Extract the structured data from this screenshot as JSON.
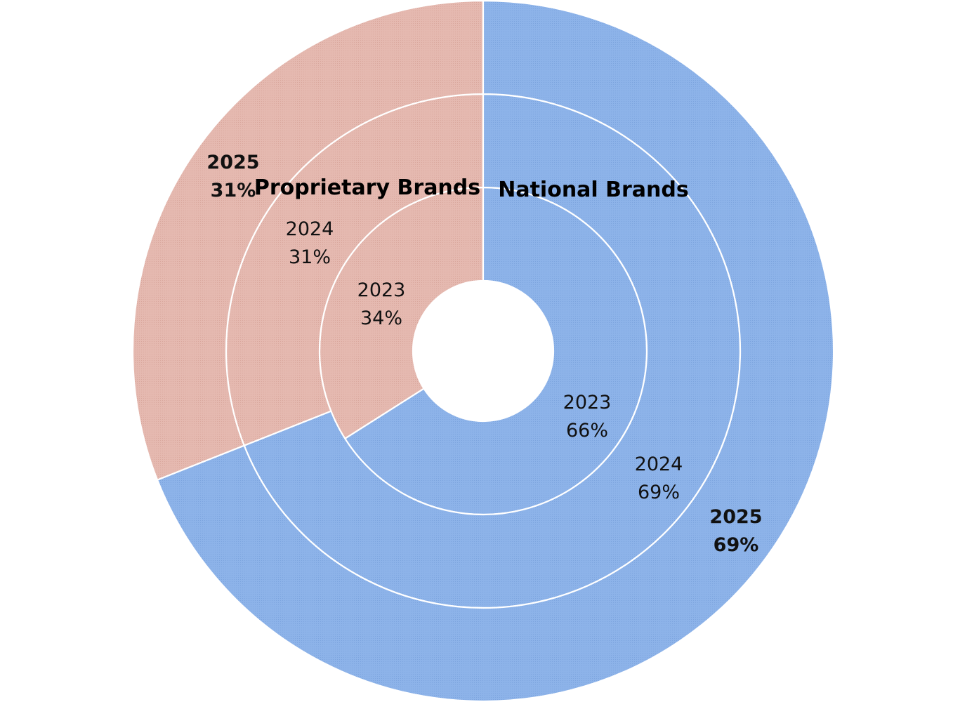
{
  "chart_data": {
    "type": "pie",
    "subtype": "multi-ring donut",
    "categories": [
      "Proprietary Brands",
      "National Brands"
    ],
    "colors": {
      "Proprietary Brands": "#E5B9B0",
      "National Brands": "#8DB3E9"
    },
    "series": [
      {
        "name": "2023",
        "values": [
          34,
          66
        ],
        "labels": [
          "34%",
          "66%"
        ],
        "emphasis": false
      },
      {
        "name": "2024",
        "values": [
          31,
          69
        ],
        "labels": [
          "31%",
          "69%"
        ],
        "emphasis": false
      },
      {
        "name": "2025",
        "values": [
          31,
          69
        ],
        "labels": [
          "31%",
          "69%"
        ],
        "emphasis": true
      }
    ],
    "ring_order": "innermost first",
    "start": "12 o'clock, counter-clockwise for first category"
  }
}
